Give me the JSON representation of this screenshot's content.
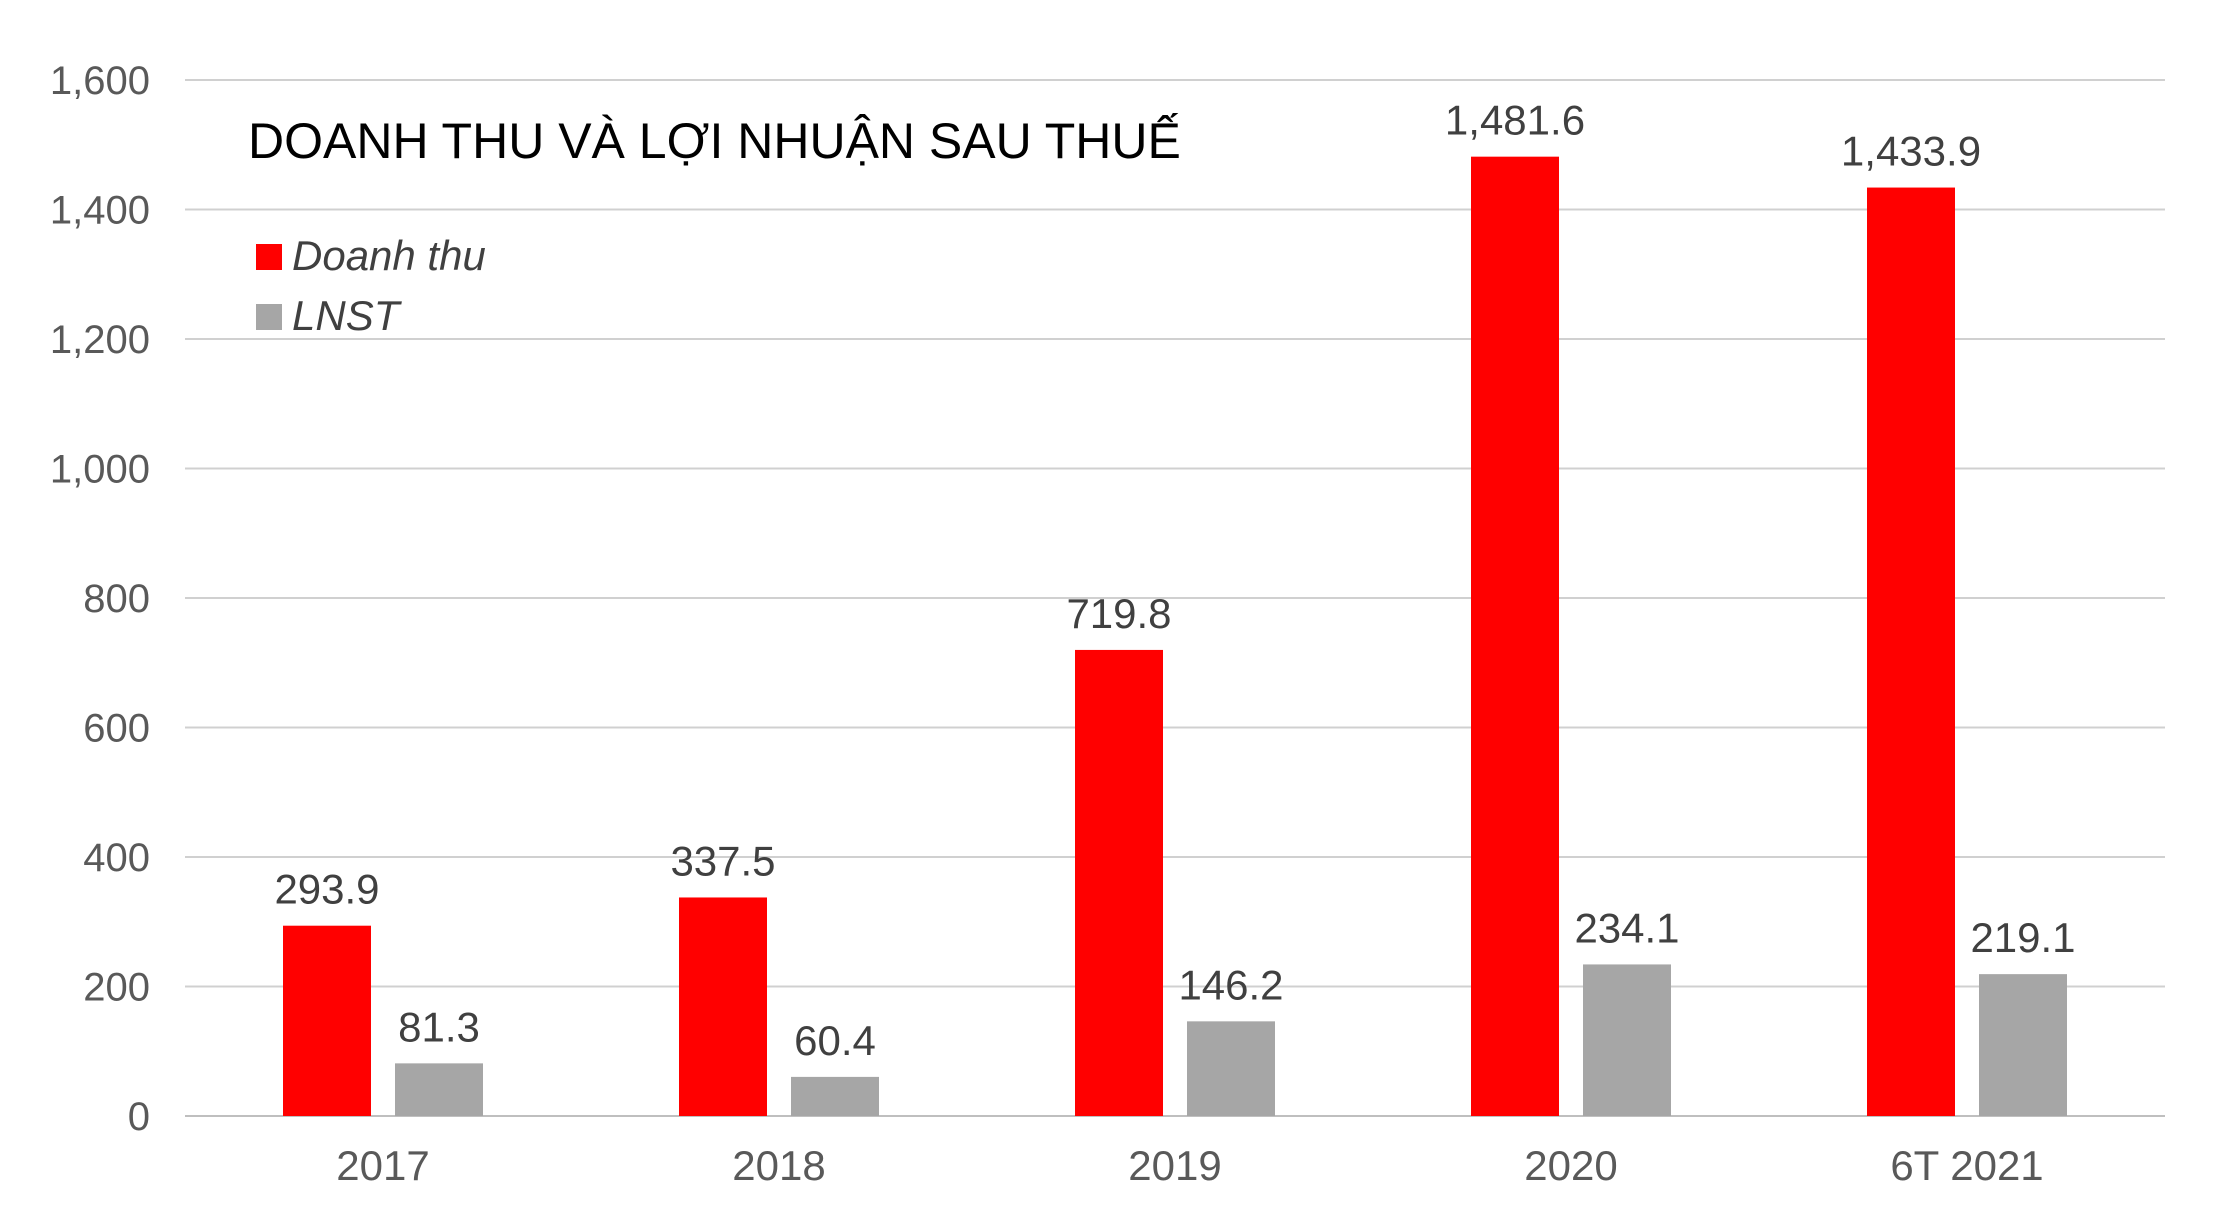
{
  "chart_data": {
    "type": "bar",
    "title": "DOANH THU VÀ LỢI NHUẬN SAU THUẾ",
    "xlabel": "",
    "ylabel": "",
    "categories": [
      "2017",
      "2018",
      "2019",
      "2020",
      "6T 2021"
    ],
    "series": [
      {
        "name": "Doanh thu",
        "color": "#ff0000",
        "values": [
          293.9,
          337.5,
          719.8,
          1481.6,
          1433.9
        ],
        "labels": [
          "293.9",
          "337.5",
          "719.8",
          "1,481.6",
          "1,433.9"
        ]
      },
      {
        "name": "LNST",
        "color": "#a6a6a6",
        "values": [
          81.3,
          60.4,
          146.2,
          234.1,
          219.1
        ],
        "labels": [
          "81.3",
          "60.4",
          "146.2",
          "234.1",
          "219.1"
        ]
      }
    ],
    "ylim": [
      0,
      1600
    ],
    "yticks": [
      "0",
      "200",
      "400",
      "600",
      "800",
      "1,000",
      "1,200",
      "1,400",
      "1,600"
    ],
    "grid": true,
    "legend_position": "top-left"
  }
}
